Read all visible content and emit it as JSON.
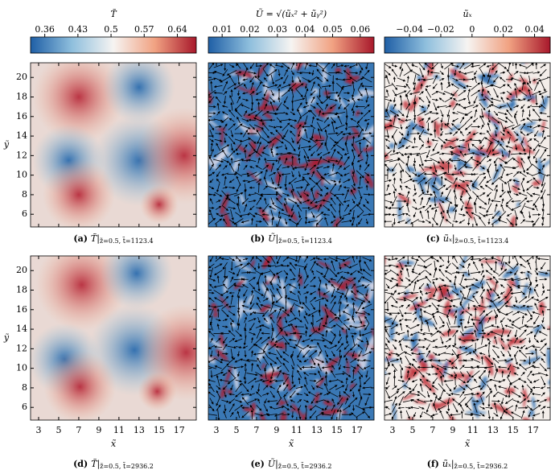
{
  "colorbars": [
    {
      "label": "T̃",
      "lim": [
        0.33,
        0.68
      ],
      "ticks": [
        0.36,
        0.43,
        0.5,
        0.57,
        0.64
      ]
    },
    {
      "label": "Ũ = √(ũₓ² + ũᵧ²)",
      "lim": [
        0.005,
        0.065
      ],
      "ticks": [
        0.01,
        0.02,
        0.03,
        0.04,
        0.05,
        0.06
      ]
    },
    {
      "label": "ũₓ",
      "lim": [
        -0.056,
        0.05
      ],
      "ticks": [
        {
          "value": -0.04,
          "label": "−0.04"
        },
        {
          "value": -0.02,
          "label": "−0.02"
        },
        0,
        0.02,
        0.04
      ]
    }
  ],
  "axes": {
    "xlim": [
      2.2,
      18.7
    ],
    "ylim": [
      4.7,
      21.5
    ],
    "xticks": [
      3,
      5,
      7,
      9,
      11,
      13,
      15,
      17
    ],
    "yticks": [
      6,
      8,
      10,
      12,
      14,
      16,
      18,
      20
    ],
    "xlabel": "x̃",
    "ylabel": "ỹ"
  },
  "panels": [
    {
      "tag": "(a)",
      "caption": "T̃|",
      "sub": "z̃=0.5, t̃=1123.4"
    },
    {
      "tag": "(b)",
      "caption": "Ũ|",
      "sub": "z̃=0.5, t̃=1123.4"
    },
    {
      "tag": "(c)",
      "caption": "ũₓ|",
      "sub": "z̃=0.5, t̃=1123.4"
    },
    {
      "tag": "(d)",
      "caption": "T̃|",
      "sub": "z̃=0.5, t̃=2936.2"
    },
    {
      "tag": "(e)",
      "caption": "Ũ|",
      "sub": "z̃=0.5, t̃=2936.2"
    },
    {
      "tag": "(f)",
      "caption": "ũₓ|",
      "sub": "z̃=0.5, t̃=2936.2"
    }
  ]
}
